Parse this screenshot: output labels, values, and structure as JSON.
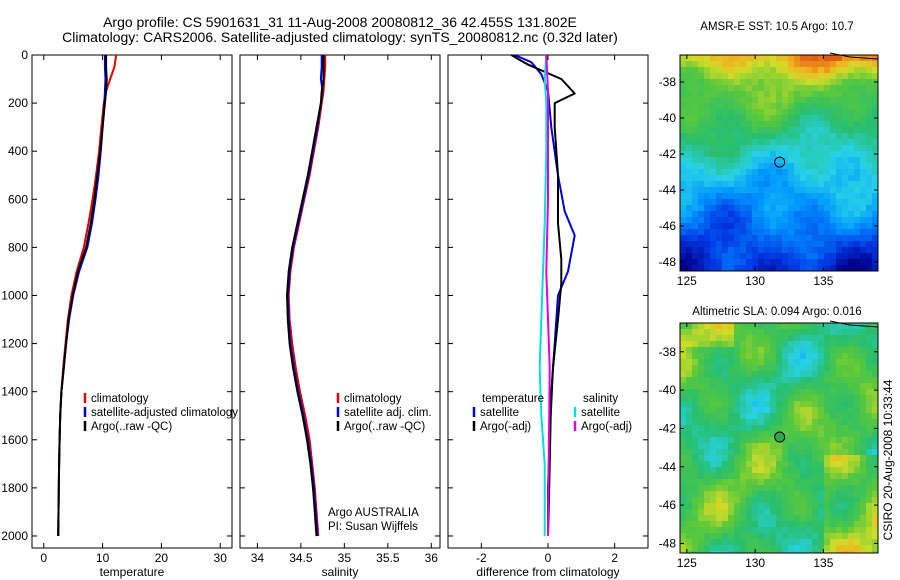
{
  "header": {
    "title_line1": "Argo profile: CS 5901631_31 11-Aug-2008 20080812_36 42.455S 131.802E",
    "title_line2": "Climatology: CARS2006. Satellite-adjusted climatology: synTS_20080812.nc (0.32d later)"
  },
  "side_stamp": "CSIRO 20-Aug-2008 10:33:44",
  "colors": {
    "climatology": "#e00000",
    "satellite": "#0000dd",
    "argo": "#000000",
    "sat_salinity": "#00e0e0",
    "argo_adj_salinity": "#e000e0"
  },
  "chart_data": [
    {
      "type": "line",
      "xlabel": "temperature",
      "xlim": [
        -2,
        32
      ],
      "ylim": [
        2050,
        0
      ],
      "xticks": [
        "0",
        "10",
        "20",
        "30"
      ],
      "yticks": [
        "0",
        "200",
        "400",
        "600",
        "800",
        "1000",
        "1200",
        "1400",
        "1600",
        "1800",
        "2000"
      ],
      "legend": [
        "climatology",
        "satellite-adjusted climatology",
        "Argo(..raw -QC)"
      ],
      "series": [
        {
          "name": "climatology",
          "color": "#e00000",
          "points": [
            [
              12.3,
              0
            ],
            [
              12.0,
              50
            ],
            [
              11.3,
              100
            ],
            [
              10.6,
              150
            ],
            [
              10.2,
              200
            ],
            [
              9.8,
              300
            ],
            [
              9.4,
              400
            ],
            [
              8.9,
              500
            ],
            [
              8.3,
              600
            ],
            [
              7.6,
              700
            ],
            [
              6.8,
              800
            ],
            [
              5.6,
              900
            ],
            [
              4.7,
              1000
            ],
            [
              4.1,
              1100
            ],
            [
              3.7,
              1200
            ],
            [
              3.3,
              1300
            ],
            [
              3.0,
              1400
            ],
            [
              2.8,
              1500
            ],
            [
              2.7,
              1600
            ],
            [
              2.6,
              1700
            ],
            [
              2.55,
              1800
            ],
            [
              2.5,
              1900
            ],
            [
              2.45,
              2000
            ]
          ]
        },
        {
          "name": "satellite-adjusted climatology",
          "color": "#0000dd",
          "points": [
            [
              10.4,
              0
            ],
            [
              10.4,
              50
            ],
            [
              10.5,
              100
            ],
            [
              10.4,
              150
            ],
            [
              10.3,
              200
            ],
            [
              10.0,
              300
            ],
            [
              9.7,
              400
            ],
            [
              9.3,
              500
            ],
            [
              8.8,
              600
            ],
            [
              8.2,
              700
            ],
            [
              7.4,
              800
            ],
            [
              6.0,
              900
            ],
            [
              5.0,
              1000
            ],
            [
              4.3,
              1100
            ],
            [
              3.8,
              1200
            ],
            [
              3.4,
              1300
            ],
            [
              3.0,
              1400
            ],
            [
              2.8,
              1500
            ],
            [
              2.7,
              1600
            ],
            [
              2.6,
              1700
            ],
            [
              2.55,
              1800
            ],
            [
              2.5,
              1900
            ],
            [
              2.45,
              2000
            ]
          ]
        },
        {
          "name": "Argo(..raw -QC)",
          "color": "#000000",
          "points": [
            [
              10.6,
              0
            ],
            [
              10.6,
              50
            ],
            [
              10.7,
              100
            ],
            [
              10.6,
              150
            ],
            [
              10.4,
              200
            ],
            [
              10.0,
              300
            ],
            [
              9.6,
              400
            ],
            [
              9.1,
              500
            ],
            [
              8.6,
              600
            ],
            [
              8.0,
              700
            ],
            [
              7.2,
              800
            ],
            [
              5.8,
              900
            ],
            [
              4.9,
              1000
            ],
            [
              4.2,
              1100
            ],
            [
              3.8,
              1200
            ],
            [
              3.4,
              1300
            ],
            [
              3.0,
              1400
            ],
            [
              2.8,
              1500
            ],
            [
              2.7,
              1600
            ],
            [
              2.6,
              1700
            ],
            [
              2.55,
              1800
            ],
            [
              2.5,
              1900
            ],
            [
              2.45,
              2000
            ]
          ]
        }
      ]
    },
    {
      "type": "line",
      "xlabel": "salinity",
      "xlim": [
        33.8,
        36.1
      ],
      "ylim": [
        2050,
        0
      ],
      "xticks": [
        "34",
        "34.5",
        "35",
        "35.5",
        "36"
      ],
      "legend": [
        "climatology",
        "satellite adj. clim.",
        "Argo(..raw -QC)"
      ],
      "annotations": [
        "Argo AUSTRALIA",
        "PI: Susan Wijffels"
      ],
      "series": [
        {
          "name": "climatology",
          "color": "#e00000",
          "points": [
            [
              34.78,
              0
            ],
            [
              34.78,
              50
            ],
            [
              34.77,
              100
            ],
            [
              34.76,
              150
            ],
            [
              34.74,
              200
            ],
            [
              34.7,
              300
            ],
            [
              34.65,
              400
            ],
            [
              34.6,
              500
            ],
            [
              34.54,
              600
            ],
            [
              34.48,
              700
            ],
            [
              34.42,
              800
            ],
            [
              34.38,
              900
            ],
            [
              34.36,
              1000
            ],
            [
              34.37,
              1100
            ],
            [
              34.4,
              1200
            ],
            [
              34.44,
              1300
            ],
            [
              34.49,
              1400
            ],
            [
              34.55,
              1500
            ],
            [
              34.6,
              1600
            ],
            [
              34.63,
              1700
            ],
            [
              34.66,
              1800
            ],
            [
              34.68,
              1900
            ],
            [
              34.7,
              2000
            ]
          ]
        },
        {
          "name": "satellite adj. clim.",
          "color": "#0000dd",
          "points": [
            [
              34.74,
              0
            ],
            [
              34.74,
              50
            ],
            [
              34.73,
              100
            ],
            [
              34.75,
              150
            ],
            [
              34.73,
              200
            ],
            [
              34.69,
              300
            ],
            [
              34.64,
              400
            ],
            [
              34.59,
              500
            ],
            [
              34.53,
              600
            ],
            [
              34.47,
              700
            ],
            [
              34.41,
              800
            ],
            [
              34.37,
              900
            ],
            [
              34.35,
              1000
            ],
            [
              34.36,
              1100
            ],
            [
              34.38,
              1200
            ],
            [
              34.42,
              1300
            ],
            [
              34.47,
              1400
            ],
            [
              34.53,
              1500
            ],
            [
              34.58,
              1600
            ],
            [
              34.62,
              1700
            ],
            [
              34.65,
              1800
            ],
            [
              34.67,
              1900
            ],
            [
              34.69,
              2000
            ]
          ]
        },
        {
          "name": "Argo(..raw -QC)",
          "color": "#000000",
          "points": [
            [
              34.76,
              0
            ],
            [
              34.76,
              50
            ],
            [
              34.76,
              100
            ],
            [
              34.74,
              150
            ],
            [
              34.73,
              200
            ],
            [
              34.68,
              300
            ],
            [
              34.63,
              400
            ],
            [
              34.58,
              500
            ],
            [
              34.52,
              600
            ],
            [
              34.46,
              700
            ],
            [
              34.4,
              800
            ],
            [
              34.36,
              900
            ],
            [
              34.34,
              1000
            ],
            [
              34.35,
              1100
            ],
            [
              34.37,
              1200
            ],
            [
              34.41,
              1300
            ],
            [
              34.46,
              1400
            ],
            [
              34.52,
              1500
            ],
            [
              34.57,
              1600
            ],
            [
              34.61,
              1700
            ],
            [
              34.64,
              1800
            ],
            [
              34.66,
              1900
            ],
            [
              34.68,
              2000
            ]
          ]
        }
      ]
    },
    {
      "type": "line",
      "xlabel": "difference from climatology",
      "xlim": [
        -3,
        3
      ],
      "ylim": [
        2050,
        0
      ],
      "xticks": [
        "-2",
        "0",
        "2"
      ],
      "legend_groups": [
        {
          "title": "temperature",
          "items": [
            "satellite",
            "Argo(-adj)"
          ]
        },
        {
          "title": "salinity",
          "items": [
            "satellite",
            "Argo(-adj)"
          ]
        }
      ],
      "series": [
        {
          "name": "temperature satellite",
          "color": "#0000dd",
          "points": [
            [
              -1.0,
              0
            ],
            [
              -0.5,
              30
            ],
            [
              -0.2,
              80
            ],
            [
              0.0,
              150
            ],
            [
              0.1,
              300
            ],
            [
              0.3,
              500
            ],
            [
              0.5,
              650
            ],
            [
              0.8,
              750
            ],
            [
              0.6,
              900
            ],
            [
              0.3,
              1000
            ],
            [
              0.2,
              1200
            ],
            [
              0.1,
              1400
            ],
            [
              0.05,
              1600
            ],
            [
              0.0,
              1800
            ],
            [
              0.0,
              2000
            ]
          ]
        },
        {
          "name": "temperature Argo(-adj)",
          "color": "#000000",
          "points": [
            [
              -1.1,
              0
            ],
            [
              -0.6,
              40
            ],
            [
              0.4,
              100
            ],
            [
              0.8,
              160
            ],
            [
              0.2,
              200
            ],
            [
              0.2,
              300
            ],
            [
              0.3,
              500
            ],
            [
              0.3,
              700
            ],
            [
              0.4,
              850
            ],
            [
              0.4,
              950
            ],
            [
              0.3,
              1100
            ],
            [
              0.15,
              1300
            ],
            [
              0.08,
              1500
            ],
            [
              0.05,
              1700
            ],
            [
              0.02,
              1900
            ],
            [
              0.0,
              2000
            ]
          ]
        },
        {
          "name": "salinity satellite",
          "color": "#00e0e0",
          "points": [
            [
              -0.05,
              0
            ],
            [
              -0.1,
              100
            ],
            [
              -0.05,
              200
            ],
            [
              -0.05,
              400
            ],
            [
              -0.1,
              700
            ],
            [
              -0.15,
              900
            ],
            [
              -0.2,
              1100
            ],
            [
              -0.25,
              1300
            ],
            [
              -0.2,
              1500
            ],
            [
              -0.1,
              1700
            ],
            [
              -0.1,
              1900
            ],
            [
              -0.1,
              2000
            ]
          ]
        },
        {
          "name": "salinity Argo(-adj)",
          "color": "#e000e0",
          "points": [
            [
              -0.05,
              0
            ],
            [
              0.0,
              150
            ],
            [
              0.0,
              300
            ],
            [
              0.0,
              600
            ],
            [
              -0.05,
              900
            ],
            [
              0.05,
              1300
            ],
            [
              0.02,
              1700
            ],
            [
              0.0,
              2000
            ]
          ]
        }
      ]
    },
    {
      "type": "heatmap",
      "title": "AMSR-E SST: 10.5 Argo: 10.7",
      "xlim": [
        124.5,
        139
      ],
      "ylim": [
        -48.5,
        -36.5
      ],
      "xticks": [
        "125",
        "130",
        "135"
      ],
      "yticks": [
        "-38",
        "-40",
        "-42",
        "-44",
        "-46",
        "-48"
      ],
      "marker": [
        131.8,
        -42.45
      ]
    },
    {
      "type": "heatmap",
      "title": "Altimetric SLA: 0.094 Argo: 0.016",
      "xlim": [
        124.5,
        139
      ],
      "ylim": [
        -48.5,
        -36.5
      ],
      "xticks": [
        "125",
        "130",
        "135"
      ],
      "yticks": [
        "-38",
        "-40",
        "-42",
        "-44",
        "-46",
        "-48"
      ],
      "marker": [
        131.8,
        -42.45
      ]
    }
  ]
}
